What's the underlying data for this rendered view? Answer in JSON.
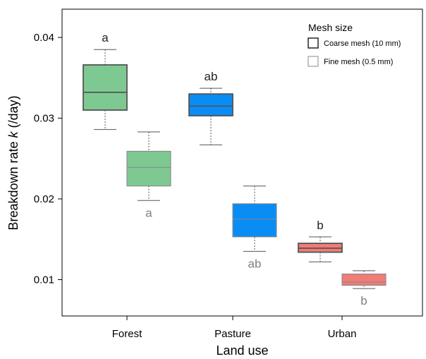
{
  "chart_data": {
    "type": "box",
    "xlabel": "Land use",
    "ylabel_prefix": "Breakdown rate ",
    "ylabel_var": "k",
    "ylabel_suffix": " (/day)",
    "ylim": [
      0.0055,
      0.0435
    ],
    "yticks": [
      0.01,
      0.02,
      0.03,
      0.04
    ],
    "ytick_labels": [
      "0.01",
      "0.02",
      "0.03",
      "0.04"
    ],
    "categories": [
      "Forest",
      "Pasture",
      "Urban"
    ],
    "legend": {
      "title": "Mesh size",
      "position": "top-right",
      "items": [
        {
          "label": "Coarse mesh (10 mm)",
          "style": "coarse"
        },
        {
          "label": "Fine mesh (0.5 mm)",
          "style": "fine"
        }
      ]
    },
    "colors": {
      "Forest": "#7dc991",
      "Pasture": "#0a8cf5",
      "Urban": "#f27b77",
      "coarse_border": "#555555",
      "fine_border": "#888888",
      "coarse_label": "#222222",
      "fine_label": "#7f7f7f"
    },
    "series": [
      {
        "name": "Coarse mesh (10 mm)",
        "boxes": [
          {
            "category": "Forest",
            "min": 0.0286,
            "q1": 0.031,
            "median": 0.0332,
            "q3": 0.0366,
            "max": 0.0385,
            "letter": "a"
          },
          {
            "category": "Pasture",
            "min": 0.0267,
            "q1": 0.0303,
            "median": 0.0315,
            "q3": 0.033,
            "max": 0.0337,
            "letter": "ab"
          },
          {
            "category": "Urban",
            "min": 0.0122,
            "q1": 0.0134,
            "median": 0.0139,
            "q3": 0.0145,
            "max": 0.0153,
            "letter": "b"
          }
        ]
      },
      {
        "name": "Fine mesh (0.5 mm)",
        "boxes": [
          {
            "category": "Forest",
            "min": 0.0198,
            "q1": 0.0216,
            "median": 0.0239,
            "q3": 0.0259,
            "max": 0.0283,
            "letter": "a"
          },
          {
            "category": "Pasture",
            "min": 0.0135,
            "q1": 0.0153,
            "median": 0.0175,
            "q3": 0.0194,
            "max": 0.0216,
            "letter": "ab"
          },
          {
            "category": "Urban",
            "min": 0.0089,
            "q1": 0.0093,
            "median": 0.0097,
            "q3": 0.0107,
            "max": 0.0111,
            "letter": "b"
          }
        ]
      }
    ]
  }
}
